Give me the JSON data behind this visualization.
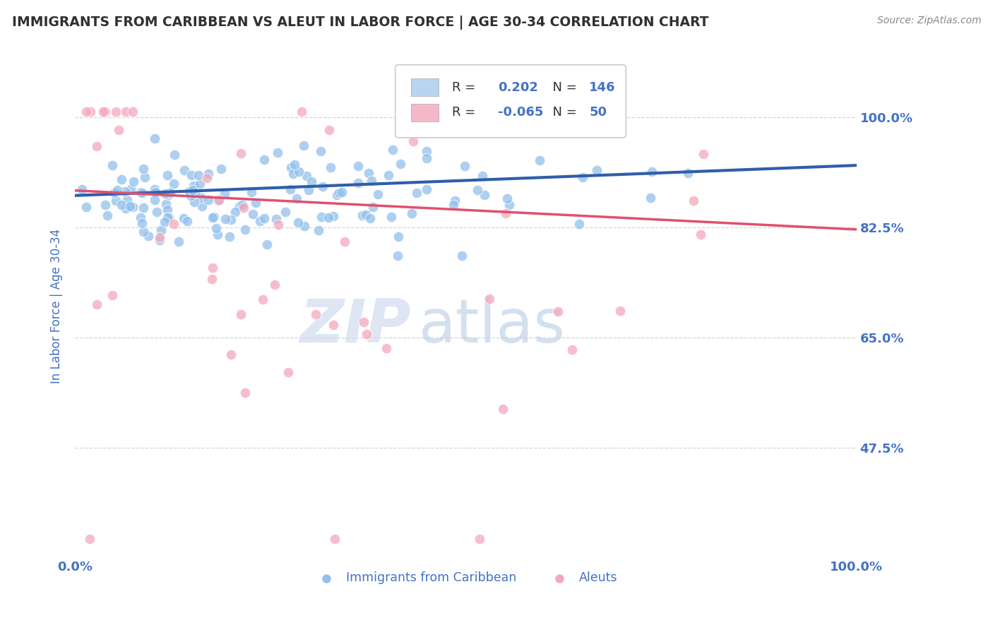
{
  "title": "IMMIGRANTS FROM CARIBBEAN VS ALEUT IN LABOR FORCE | AGE 30-34 CORRELATION CHART",
  "source_text": "Source: ZipAtlas.com",
  "ylabel": "In Labor Force | Age 30-34",
  "xlim": [
    0.0,
    1.0
  ],
  "ylim": [
    0.3,
    1.1
  ],
  "yticks": [
    0.475,
    0.65,
    0.825,
    1.0
  ],
  "ytick_labels": [
    "47.5%",
    "65.0%",
    "82.5%",
    "100.0%"
  ],
  "xtick_labels": [
    "0.0%",
    "100.0%"
  ],
  "xticks": [
    0.0,
    1.0
  ],
  "blue_R": 0.202,
  "blue_N": 146,
  "pink_R": -0.065,
  "pink_N": 50,
  "blue_color": "#92C0EC",
  "pink_color": "#F4A8BA",
  "blue_line_color": "#2E5FA8",
  "pink_line_color": "#E05070",
  "legend_box_blue": "#B8D4F0",
  "legend_box_pink": "#F4B8C8",
  "watermark_color_zip": "#C8D8EC",
  "watermark_color_atlas": "#A8C0D8",
  "background_color": "#FFFFFF",
  "title_color": "#303030",
  "tick_label_color": "#4472C4",
  "grid_color": "#CCCCCC",
  "grid_style": "--"
}
